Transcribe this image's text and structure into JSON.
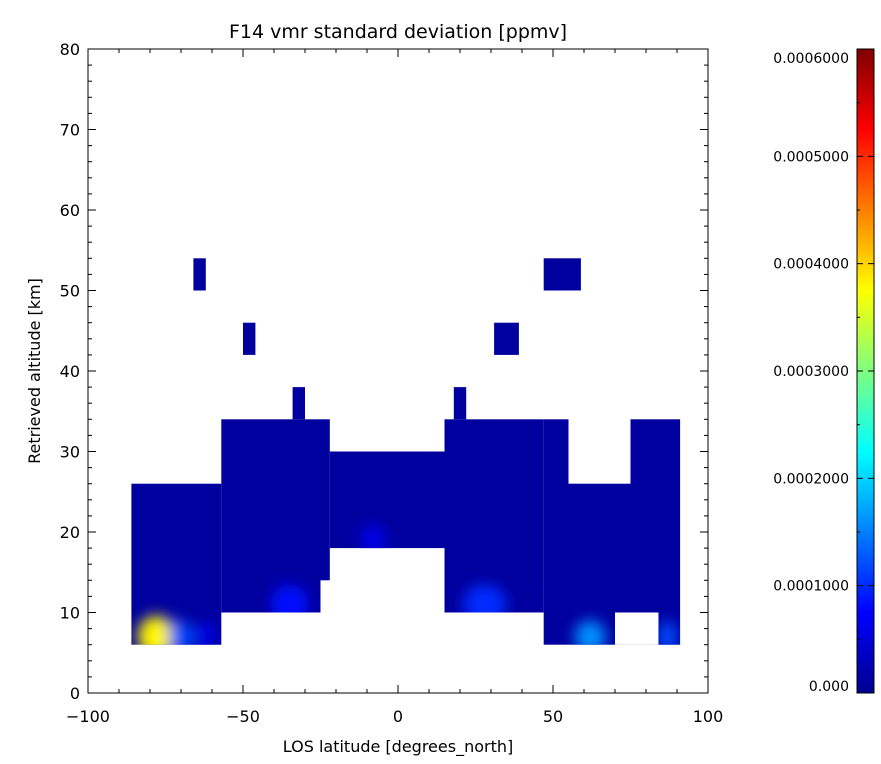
{
  "chart_data": {
    "type": "heatmap",
    "title": "F14 vmr standard deviation [ppmv]",
    "xlabel": "LOS latitude [degrees_north]",
    "ylabel": "Retrieved altitude [km]",
    "xlim": [
      -100,
      100
    ],
    "ylim": [
      0,
      80
    ],
    "xticks": [
      -100,
      -50,
      0,
      50,
      100
    ],
    "yticks": [
      0,
      10,
      20,
      30,
      40,
      50,
      60,
      70,
      80
    ],
    "colorbar": {
      "range": [
        0.0,
        0.0006
      ],
      "tick_values": [
        0.0,
        0.0001,
        0.0002,
        0.0003,
        0.0004,
        0.0005,
        0.0006
      ],
      "tick_labels": [
        "0.000",
        "0.0001000",
        "0.0002000",
        "0.0003000",
        "0.0004000",
        "0.0005000",
        "0.0006000"
      ],
      "colormap": [
        "#00008f",
        "#0000ff",
        "#00ffff",
        "#ffff00",
        "#ff0000",
        "#800000"
      ]
    },
    "cells": [
      {
        "lon": [
          -86,
          -57
        ],
        "alt": [
          6,
          26
        ],
        "value": 1e-05
      },
      {
        "lon": [
          -57,
          -25
        ],
        "alt": [
          10,
          34
        ],
        "value": 1e-05
      },
      {
        "lon": [
          -25,
          -22
        ],
        "alt": [
          14,
          34
        ],
        "value": 1e-05
      },
      {
        "lon": [
          -22,
          15
        ],
        "alt": [
          18,
          30
        ],
        "value": 1e-05
      },
      {
        "lon": [
          15,
          47
        ],
        "alt": [
          10,
          34
        ],
        "value": 1e-05
      },
      {
        "lon": [
          47,
          55
        ],
        "alt": [
          6,
          34
        ],
        "value": 1e-05
      },
      {
        "lon": [
          55,
          75
        ],
        "alt": [
          6,
          26
        ],
        "value": 1e-05
      },
      {
        "lon": [
          75,
          91
        ],
        "alt": [
          6,
          34
        ],
        "value": 1e-05
      },
      {
        "lon": [
          70,
          84
        ],
        "alt": [
          6,
          10
        ],
        "value": null
      },
      {
        "lon": [
          -66,
          -62
        ],
        "alt": [
          50,
          54
        ],
        "value": 1e-05
      },
      {
        "lon": [
          -50,
          -46
        ],
        "alt": [
          42,
          46
        ],
        "value": 1e-05
      },
      {
        "lon": [
          -34,
          -30
        ],
        "alt": [
          34,
          38
        ],
        "value": 1e-05
      },
      {
        "lon": [
          18,
          22
        ],
        "alt": [
          34,
          38
        ],
        "value": 1e-05
      },
      {
        "lon": [
          31,
          39
        ],
        "alt": [
          42,
          46
        ],
        "value": 1e-05
      },
      {
        "lon": [
          47,
          59
        ],
        "alt": [
          50,
          54
        ],
        "value": 1e-05
      }
    ],
    "hotspots": [
      {
        "lon": -78,
        "alt": 7,
        "value": 0.00038,
        "spread_lon": 6,
        "spread_alt": 2.6
      },
      {
        "lon": -70,
        "alt": 7,
        "value": 0.00012,
        "spread_lon": 4,
        "spread_alt": 2
      },
      {
        "lon": -62,
        "alt": 7,
        "value": 6e-05,
        "spread_lon": 3,
        "spread_alt": 2
      },
      {
        "lon": -35,
        "alt": 11,
        "value": 8e-05,
        "spread_lon": 6,
        "spread_alt": 2.5
      },
      {
        "lon": -8,
        "alt": 19,
        "value": 6e-05,
        "spread_lon": 4,
        "spread_alt": 2
      },
      {
        "lon": 28,
        "alt": 11,
        "value": 0.0001,
        "spread_lon": 7,
        "spread_alt": 2.5
      },
      {
        "lon": 62,
        "alt": 7,
        "value": 0.00016,
        "spread_lon": 5,
        "spread_alt": 2
      },
      {
        "lon": 87,
        "alt": 7,
        "value": 0.00012,
        "spread_lon": 3,
        "spread_alt": 2
      }
    ]
  }
}
